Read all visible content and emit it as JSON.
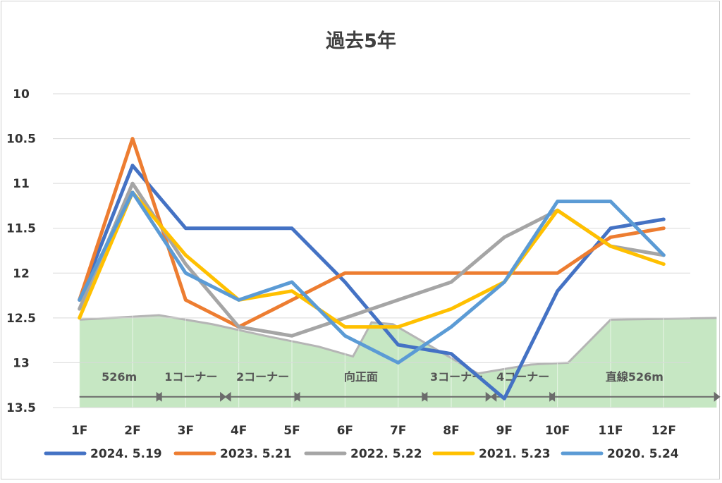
{
  "chart_data": {
    "type": "line",
    "title": "過去5年",
    "categories": [
      "1F",
      "2F",
      "3F",
      "4F",
      "5F",
      "6F",
      "7F",
      "8F",
      "9F",
      "10F",
      "11F",
      "12F"
    ],
    "y_ticks": [
      "10",
      "10.5",
      "11",
      "11.5",
      "12",
      "12.5",
      "13",
      "13.5"
    ],
    "ylim": [
      10,
      13.5
    ],
    "y_inverted": true,
    "grid": "horizontal",
    "legend_position": "bottom",
    "series": [
      {
        "name": "2024. 5.19",
        "color": "#4472C4",
        "values": [
          12.3,
          10.8,
          11.5,
          11.5,
          11.5,
          12.1,
          12.8,
          12.9,
          13.4,
          12.2,
          11.5,
          11.4
        ]
      },
      {
        "name": "2023. 5.21",
        "color": "#ED7D31",
        "values": [
          12.3,
          10.5,
          12.3,
          12.6,
          12.3,
          12.0,
          12.0,
          12.0,
          12.0,
          12.0,
          11.6,
          11.5
        ]
      },
      {
        "name": "2022. 5.22",
        "color": "#A5A5A5",
        "values": [
          12.4,
          11.0,
          11.9,
          12.6,
          12.7,
          12.5,
          12.3,
          12.1,
          11.6,
          11.3,
          11.7,
          11.8
        ]
      },
      {
        "name": "2021. 5.23",
        "color": "#FFC000",
        "values": [
          12.5,
          11.1,
          11.8,
          12.3,
          12.2,
          12.6,
          12.6,
          12.4,
          12.1,
          11.3,
          11.7,
          11.9
        ]
      },
      {
        "name": "2020. 5.24",
        "color": "#5B9BD5",
        "values": [
          12.3,
          11.1,
          12.0,
          12.3,
          12.1,
          12.7,
          13.0,
          12.6,
          12.1,
          11.2,
          11.2,
          11.8
        ]
      }
    ],
    "course_elevation": {
      "fill_color": "#C6E7C3",
      "x": [
        0.5,
        2.0,
        3.0,
        4.0,
        5.0,
        5.65,
        6.0,
        6.4,
        8.0,
        9.0,
        9.7,
        10.5,
        12.5
      ],
      "y": [
        12.52,
        12.47,
        12.57,
        12.7,
        12.82,
        12.93,
        12.55,
        12.57,
        13.12,
        13.02,
        13.0,
        12.52,
        12.5
      ]
    },
    "sections": [
      {
        "label": "526m",
        "from": 0.5,
        "to": 2.0
      },
      {
        "label": "1コーナー",
        "from": 2.0,
        "to": 3.2
      },
      {
        "label": "2コーナー",
        "from": 3.3,
        "to": 4.6
      },
      {
        "label": "向正面",
        "from": 4.6,
        "to": 7.0
      },
      {
        "label": "3コーナー",
        "from": 7.0,
        "to": 8.2
      },
      {
        "label": "4コーナー",
        "from": 8.3,
        "to": 9.4
      },
      {
        "label": "直線526m",
        "from": 9.4,
        "to": 12.5
      }
    ]
  }
}
